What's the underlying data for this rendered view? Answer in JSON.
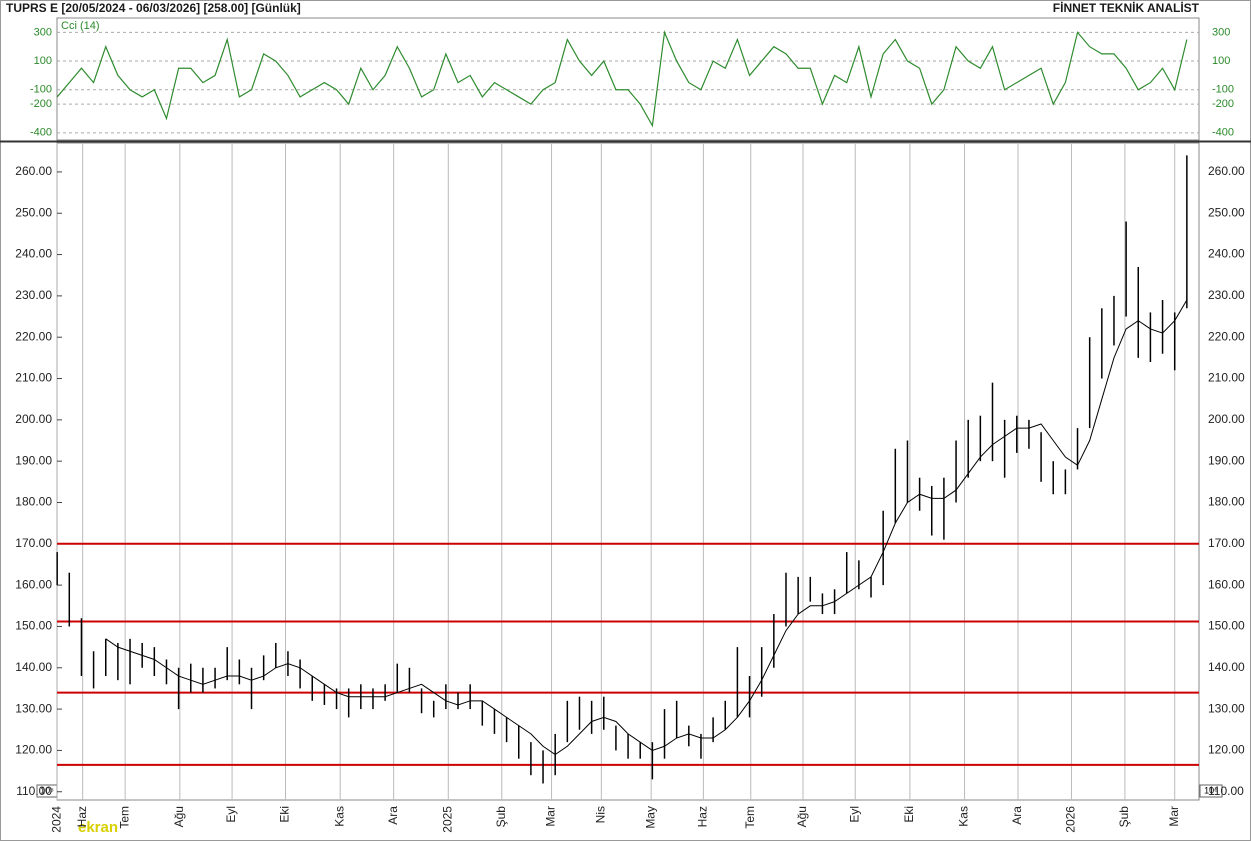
{
  "header": {
    "title": "TUPRS E  [20/05/2024 - 06/03/2026]  [258.00]  [Günlük]",
    "source": "FİNNET TEKNİK ANALİST",
    "unit_label": "10⁶",
    "logo": "ekran"
  },
  "chart_data": [
    {
      "type": "line",
      "xlim": [
        -1,
        94
      ],
      "ylim": [
        -450,
        400
      ],
      "yticks": [
        300,
        100,
        -100,
        -200,
        -400
      ],
      "grid": true,
      "series": [
        {
          "name": "Cci (14)",
          "color": "#2e8b2e",
          "values": [
            -150,
            -50,
            50,
            -50,
            200,
            0,
            -100,
            -150,
            -100,
            -300,
            50,
            50,
            -50,
            0,
            250,
            -150,
            -100,
            150,
            100,
            0,
            -150,
            -100,
            -50,
            -100,
            -200,
            50,
            -100,
            0,
            200,
            50,
            -150,
            -100,
            150,
            -50,
            0,
            -150,
            -50,
            -100,
            -150,
            -200,
            -100,
            -50,
            250,
            100,
            0,
            100,
            -100,
            -100,
            -200,
            -350,
            300,
            100,
            -50,
            -100,
            100,
            50,
            250,
            0,
            100,
            200,
            150,
            50,
            50,
            -200,
            0,
            -50,
            200,
            -150,
            150,
            250,
            100,
            50,
            -200,
            -100,
            200,
            100,
            50,
            200,
            -100,
            -50,
            0,
            50,
            -200,
            -50,
            300,
            200,
            150,
            150,
            50,
            -100,
            -50,
            50,
            -100,
            250
          ]
        }
      ]
    },
    {
      "type": "ohlc",
      "xlim": [
        -1,
        94
      ],
      "ylim": [
        108,
        267
      ],
      "color": "#000000",
      "ma_color": "#000000",
      "hline_color": "#cc0000",
      "yticks": [
        {
          "value": 110,
          "label": "110.00"
        },
        {
          "value": 120,
          "label": "120.00"
        },
        {
          "value": 130,
          "label": "130.00"
        },
        {
          "value": 140,
          "label": "140.00"
        },
        {
          "value": 150,
          "label": "150.00"
        },
        {
          "value": 160,
          "label": "160.00"
        },
        {
          "value": 170,
          "label": "170.00"
        },
        {
          "value": 180,
          "label": "180.00"
        },
        {
          "value": 190,
          "label": "190.00"
        },
        {
          "value": 200,
          "label": "200.00"
        },
        {
          "value": 210,
          "label": "210.00"
        },
        {
          "value": 220,
          "label": "220.00"
        },
        {
          "value": 230,
          "label": "230.00"
        },
        {
          "value": 240,
          "label": "240.00"
        },
        {
          "value": 250,
          "label": "250.00"
        },
        {
          "value": 260,
          "label": "260.00"
        }
      ],
      "xticks": [
        {
          "value": 0,
          "label": "2024"
        },
        {
          "value": 2.1,
          "label": "Haz"
        },
        {
          "value": 5.6,
          "label": "Tem"
        },
        {
          "value": 10.1,
          "label": "Ağu"
        },
        {
          "value": 14.4,
          "label": "Eyl"
        },
        {
          "value": 18.8,
          "label": "Eki"
        },
        {
          "value": 23.3,
          "label": "Kas"
        },
        {
          "value": 27.7,
          "label": "Ara"
        },
        {
          "value": 32.2,
          "label": "2025"
        },
        {
          "value": 36.6,
          "label": "Şub"
        },
        {
          "value": 40.7,
          "label": "Mar"
        },
        {
          "value": 44.8,
          "label": "Nis"
        },
        {
          "value": 48.9,
          "label": "May"
        },
        {
          "value": 53.2,
          "label": "Haz"
        },
        {
          "value": 57.1,
          "label": "Tem"
        },
        {
          "value": 61.4,
          "label": "Ağu"
        },
        {
          "value": 65.7,
          "label": "Eyl"
        },
        {
          "value": 70.2,
          "label": "Eki"
        },
        {
          "value": 74.7,
          "label": "Kas"
        },
        {
          "value": 79.1,
          "label": "Ara"
        },
        {
          "value": 83.5,
          "label": "2026"
        },
        {
          "value": 87.9,
          "label": "Şub"
        },
        {
          "value": 92,
          "label": "Mar"
        }
      ],
      "hlines": [
        170,
        151.2,
        134,
        116.5
      ],
      "high": [
        168,
        163,
        152,
        144,
        147,
        146,
        147,
        146,
        145,
        142,
        140,
        141,
        140,
        140,
        145,
        142,
        140,
        143,
        146,
        144,
        142,
        138,
        136,
        135,
        135,
        136,
        135,
        136,
        141,
        140,
        135,
        132,
        136,
        134,
        136,
        132,
        130,
        128,
        126,
        122,
        120,
        124,
        132,
        133,
        132,
        133,
        126,
        124,
        122,
        122,
        130,
        132,
        126,
        124,
        128,
        132,
        145,
        138,
        145,
        153,
        163,
        162,
        162,
        158,
        159,
        168,
        166,
        162,
        178,
        193,
        195,
        186,
        184,
        186,
        195,
        200,
        201,
        209,
        200,
        201,
        200,
        197,
        190,
        188,
        198,
        220,
        227,
        230,
        248,
        237,
        226,
        229,
        226,
        264
      ],
      "low": [
        160,
        150,
        138,
        135,
        138,
        137,
        136,
        140,
        138,
        136,
        130,
        134,
        134,
        135,
        137,
        136,
        130,
        137,
        140,
        138,
        135,
        132,
        131,
        130,
        128,
        130,
        130,
        132,
        134,
        134,
        129,
        128,
        130,
        130,
        130,
        126,
        124,
        122,
        118,
        114,
        112,
        114,
        122,
        125,
        124,
        125,
        120,
        118,
        118,
        113,
        118,
        123,
        121,
        118,
        122,
        125,
        128,
        128,
        133,
        140,
        150,
        153,
        156,
        153,
        153,
        158,
        159,
        157,
        160,
        175,
        180,
        178,
        172,
        171,
        180,
        186,
        190,
        190,
        186,
        192,
        193,
        185,
        182,
        182,
        188,
        198,
        210,
        218,
        225,
        215,
        214,
        216,
        212,
        227
      ],
      "ma": [
        null,
        null,
        null,
        null,
        147,
        145,
        144,
        143,
        142,
        140,
        138,
        137,
        136,
        137,
        138,
        138,
        137,
        138,
        140,
        141,
        140,
        138,
        136,
        134,
        133,
        133,
        133,
        133,
        134,
        135,
        136,
        134,
        132,
        131,
        132,
        132,
        130,
        128,
        126,
        124,
        121,
        119,
        121,
        124,
        127,
        128,
        127,
        124,
        122,
        120,
        121,
        123,
        124,
        123,
        123,
        125,
        128,
        132,
        137,
        143,
        149,
        153,
        155,
        155,
        156,
        158,
        160,
        162,
        168,
        175,
        180,
        182,
        181,
        181,
        183,
        187,
        191,
        194,
        196,
        198,
        198,
        199,
        195,
        191,
        189,
        195,
        205,
        215,
        222,
        224,
        222,
        221,
        224,
        229
      ]
    }
  ]
}
